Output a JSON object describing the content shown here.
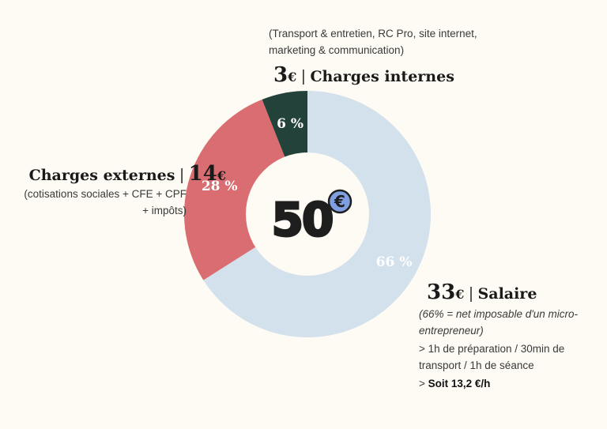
{
  "chart_data": {
    "type": "pie",
    "donut": true,
    "center_label": "50",
    "center_currency": "€",
    "slices": [
      {
        "name": "Salaire",
        "percent": 66,
        "label": "66 %",
        "color": "#d3e1ec",
        "label_color": "#ffffff"
      },
      {
        "name": "Charges externes",
        "percent": 28,
        "label": "28 %",
        "color": "#da6d71",
        "label_color": "#ffffff"
      },
      {
        "name": "Charges internes",
        "percent": 6,
        "label": "6 %",
        "color": "#234239",
        "label_color": "#ffffff"
      }
    ]
  },
  "annotations": {
    "internes": {
      "sub": "(Transport & entretien, RC Pro, site internet, marketing & communication)",
      "amount": "3",
      "currency": "€",
      "separator": "|",
      "label": "Charges internes"
    },
    "externes": {
      "label": "Charges externes",
      "separator": "|",
      "amount": "14",
      "currency": "€",
      "sub": "(cotisations sociales + CFE + CPF + impôts)"
    },
    "salaire": {
      "amount": "33",
      "currency": "€",
      "separator": "|",
      "label": "Salaire",
      "note": "(66% = net imposable d'un micro-entrepreneur)",
      "detail": "> 1h de préparation / 30min de transport / 1h de séance",
      "result_prefix": "> ",
      "result": "Soit 13,2 €/h"
    }
  }
}
